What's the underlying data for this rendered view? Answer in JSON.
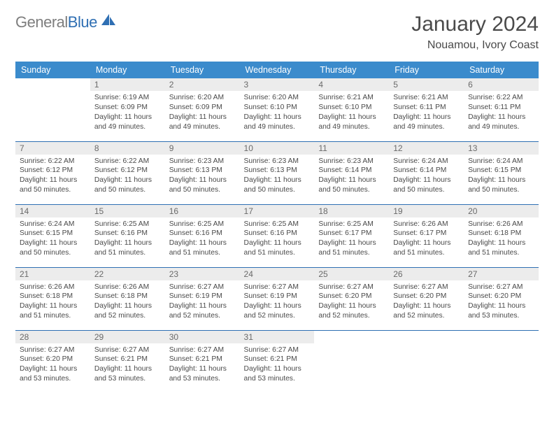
{
  "brand": {
    "part1": "General",
    "part2": "Blue"
  },
  "title": "January 2024",
  "location": "Nouamou, Ivory Coast",
  "colors": {
    "header_bg": "#3b8bcc",
    "header_text": "#ffffff",
    "rule": "#2f6fb3",
    "daynum_bg": "#ececec",
    "body_text": "#4a4a4a"
  },
  "weekdays": [
    "Sunday",
    "Monday",
    "Tuesday",
    "Wednesday",
    "Thursday",
    "Friday",
    "Saturday"
  ],
  "month": {
    "year": 2024,
    "first_weekday": 1,
    "days_in_month": 31
  },
  "days": {
    "1": {
      "sunrise": "6:19 AM",
      "sunset": "6:09 PM",
      "daylight": "11 hours and 49 minutes."
    },
    "2": {
      "sunrise": "6:20 AM",
      "sunset": "6:09 PM",
      "daylight": "11 hours and 49 minutes."
    },
    "3": {
      "sunrise": "6:20 AM",
      "sunset": "6:10 PM",
      "daylight": "11 hours and 49 minutes."
    },
    "4": {
      "sunrise": "6:21 AM",
      "sunset": "6:10 PM",
      "daylight": "11 hours and 49 minutes."
    },
    "5": {
      "sunrise": "6:21 AM",
      "sunset": "6:11 PM",
      "daylight": "11 hours and 49 minutes."
    },
    "6": {
      "sunrise": "6:22 AM",
      "sunset": "6:11 PM",
      "daylight": "11 hours and 49 minutes."
    },
    "7": {
      "sunrise": "6:22 AM",
      "sunset": "6:12 PM",
      "daylight": "11 hours and 50 minutes."
    },
    "8": {
      "sunrise": "6:22 AM",
      "sunset": "6:12 PM",
      "daylight": "11 hours and 50 minutes."
    },
    "9": {
      "sunrise": "6:23 AM",
      "sunset": "6:13 PM",
      "daylight": "11 hours and 50 minutes."
    },
    "10": {
      "sunrise": "6:23 AM",
      "sunset": "6:13 PM",
      "daylight": "11 hours and 50 minutes."
    },
    "11": {
      "sunrise": "6:23 AM",
      "sunset": "6:14 PM",
      "daylight": "11 hours and 50 minutes."
    },
    "12": {
      "sunrise": "6:24 AM",
      "sunset": "6:14 PM",
      "daylight": "11 hours and 50 minutes."
    },
    "13": {
      "sunrise": "6:24 AM",
      "sunset": "6:15 PM",
      "daylight": "11 hours and 50 minutes."
    },
    "14": {
      "sunrise": "6:24 AM",
      "sunset": "6:15 PM",
      "daylight": "11 hours and 50 minutes."
    },
    "15": {
      "sunrise": "6:25 AM",
      "sunset": "6:16 PM",
      "daylight": "11 hours and 51 minutes."
    },
    "16": {
      "sunrise": "6:25 AM",
      "sunset": "6:16 PM",
      "daylight": "11 hours and 51 minutes."
    },
    "17": {
      "sunrise": "6:25 AM",
      "sunset": "6:16 PM",
      "daylight": "11 hours and 51 minutes."
    },
    "18": {
      "sunrise": "6:25 AM",
      "sunset": "6:17 PM",
      "daylight": "11 hours and 51 minutes."
    },
    "19": {
      "sunrise": "6:26 AM",
      "sunset": "6:17 PM",
      "daylight": "11 hours and 51 minutes."
    },
    "20": {
      "sunrise": "6:26 AM",
      "sunset": "6:18 PM",
      "daylight": "11 hours and 51 minutes."
    },
    "21": {
      "sunrise": "6:26 AM",
      "sunset": "6:18 PM",
      "daylight": "11 hours and 51 minutes."
    },
    "22": {
      "sunrise": "6:26 AM",
      "sunset": "6:18 PM",
      "daylight": "11 hours and 52 minutes."
    },
    "23": {
      "sunrise": "6:27 AM",
      "sunset": "6:19 PM",
      "daylight": "11 hours and 52 minutes."
    },
    "24": {
      "sunrise": "6:27 AM",
      "sunset": "6:19 PM",
      "daylight": "11 hours and 52 minutes."
    },
    "25": {
      "sunrise": "6:27 AM",
      "sunset": "6:20 PM",
      "daylight": "11 hours and 52 minutes."
    },
    "26": {
      "sunrise": "6:27 AM",
      "sunset": "6:20 PM",
      "daylight": "11 hours and 52 minutes."
    },
    "27": {
      "sunrise": "6:27 AM",
      "sunset": "6:20 PM",
      "daylight": "11 hours and 53 minutes."
    },
    "28": {
      "sunrise": "6:27 AM",
      "sunset": "6:20 PM",
      "daylight": "11 hours and 53 minutes."
    },
    "29": {
      "sunrise": "6:27 AM",
      "sunset": "6:21 PM",
      "daylight": "11 hours and 53 minutes."
    },
    "30": {
      "sunrise": "6:27 AM",
      "sunset": "6:21 PM",
      "daylight": "11 hours and 53 minutes."
    },
    "31": {
      "sunrise": "6:27 AM",
      "sunset": "6:21 PM",
      "daylight": "11 hours and 53 minutes."
    }
  },
  "labels": {
    "sunrise": "Sunrise:",
    "sunset": "Sunset:",
    "daylight": "Daylight:"
  }
}
